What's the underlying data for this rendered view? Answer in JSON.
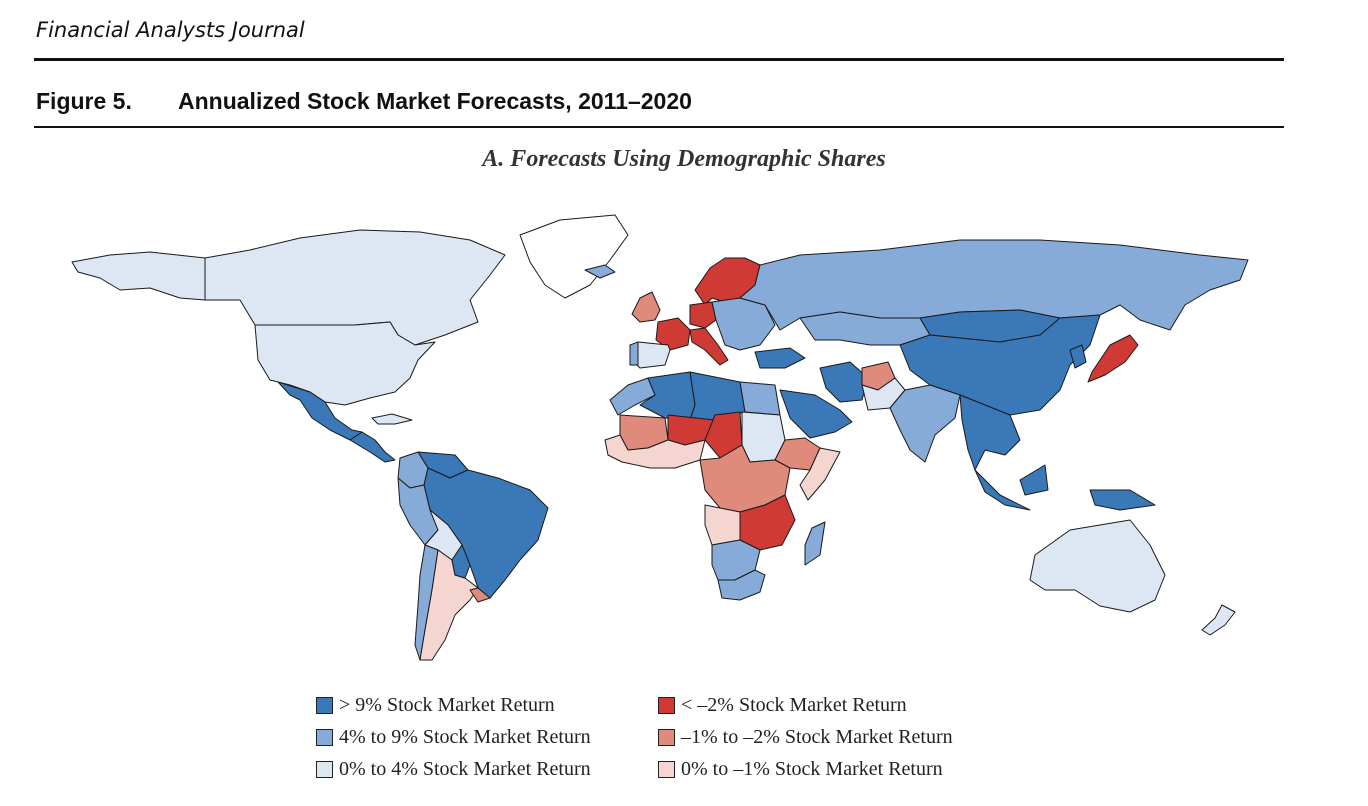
{
  "header": {
    "journal": "Financial Analysts Journal",
    "figure_number": "Figure 5.",
    "figure_title": "Annualized Stock Market Forecasts, 2011–2020",
    "panel_title": "A. Forecasts Using Demographic Shares"
  },
  "colors": {
    "gt9": "#3a78b8",
    "4to9": "#86abd8",
    "0to4": "#dde6f3",
    "ltm2": "#cf3a35",
    "m1tom2": "#e08a7c",
    "0tom1": "#f4d5d0",
    "border": "#1a1a1a"
  },
  "legend": [
    {
      "key": "gt9",
      "label": "> 9% Stock Market Return"
    },
    {
      "key": "4to9",
      "label": "4% to 9% Stock Market Return"
    },
    {
      "key": "0to4",
      "label": "0% to 4% Stock Market Return"
    },
    {
      "key": "ltm2",
      "label": "< –2% Stock Market Return"
    },
    {
      "key": "m1tom2",
      "label": "–1% to –2% Stock Market Return"
    },
    {
      "key": "0tom1",
      "label": "0% to –1% Stock Market Return"
    }
  ],
  "regions": [
    {
      "name": "Canada",
      "category": "0to4"
    },
    {
      "name": "Alaska",
      "category": "0to4"
    },
    {
      "name": "Greenland",
      "category": "none"
    },
    {
      "name": "United States",
      "category": "0to4"
    },
    {
      "name": "Mexico",
      "category": "gt9"
    },
    {
      "name": "Central America",
      "category": "gt9"
    },
    {
      "name": "Cuba",
      "category": "0to4"
    },
    {
      "name": "Colombia",
      "category": "4to9"
    },
    {
      "name": "Venezuela",
      "category": "gt9"
    },
    {
      "name": "Brazil",
      "category": "gt9"
    },
    {
      "name": "Peru",
      "category": "4to9"
    },
    {
      "name": "Bolivia",
      "category": "0to4"
    },
    {
      "name": "Chile",
      "category": "4to9"
    },
    {
      "name": "Argentina",
      "category": "0tom1"
    },
    {
      "name": "Uruguay",
      "category": "m1tom2"
    },
    {
      "name": "Paraguay",
      "category": "gt9"
    },
    {
      "name": "Iceland",
      "category": "4to9"
    },
    {
      "name": "United Kingdom",
      "category": "m1tom2"
    },
    {
      "name": "Norway/Sweden/Finland",
      "category": "ltm2"
    },
    {
      "name": "France",
      "category": "ltm2"
    },
    {
      "name": "Germany",
      "category": "ltm2"
    },
    {
      "name": "Spain",
      "category": "0to4"
    },
    {
      "name": "Portugal",
      "category": "4to9"
    },
    {
      "name": "Italy",
      "category": "ltm2"
    },
    {
      "name": "Eastern Europe",
      "category": "4to9"
    },
    {
      "name": "Russia",
      "category": "4to9"
    },
    {
      "name": "Kazakhstan",
      "category": "4to9"
    },
    {
      "name": "Mongolia",
      "category": "gt9"
    },
    {
      "name": "China",
      "category": "gt9"
    },
    {
      "name": "Japan",
      "category": "ltm2"
    },
    {
      "name": "Korea",
      "category": "gt9"
    },
    {
      "name": "Turkey",
      "category": "gt9"
    },
    {
      "name": "Iran",
      "category": "gt9"
    },
    {
      "name": "Afghanistan",
      "category": "m1tom2"
    },
    {
      "name": "Pakistan",
      "category": "0to4"
    },
    {
      "name": "India",
      "category": "4to9"
    },
    {
      "name": "Saudi Arabia",
      "category": "gt9"
    },
    {
      "name": "Southeast Asia",
      "category": "gt9"
    },
    {
      "name": "Indonesia",
      "category": "gt9"
    },
    {
      "name": "Australia",
      "category": "0to4"
    },
    {
      "name": "New Zealand",
      "category": "0to4"
    },
    {
      "name": "Morocco",
      "category": "4to9"
    },
    {
      "name": "Algeria",
      "category": "gt9"
    },
    {
      "name": "Libya",
      "category": "gt9"
    },
    {
      "name": "Egypt",
      "category": "4to9"
    },
    {
      "name": "Mali",
      "category": "m1tom2"
    },
    {
      "name": "Niger",
      "category": "ltm2"
    },
    {
      "name": "Chad",
      "category": "ltm2"
    },
    {
      "name": "Sudan",
      "category": "0to4"
    },
    {
      "name": "Ethiopia",
      "category": "m1tom2"
    },
    {
      "name": "Somalia",
      "category": "0tom1"
    },
    {
      "name": "West Africa coast",
      "category": "0tom1"
    },
    {
      "name": "Central Africa",
      "category": "m1tom2"
    },
    {
      "name": "Angola",
      "category": "0tom1"
    },
    {
      "name": "Zambia/Malawi",
      "category": "ltm2"
    },
    {
      "name": "Namibia/Botswana",
      "category": "4to9"
    },
    {
      "name": "South Africa",
      "category": "4to9"
    },
    {
      "name": "Madagascar",
      "category": "4to9"
    }
  ]
}
